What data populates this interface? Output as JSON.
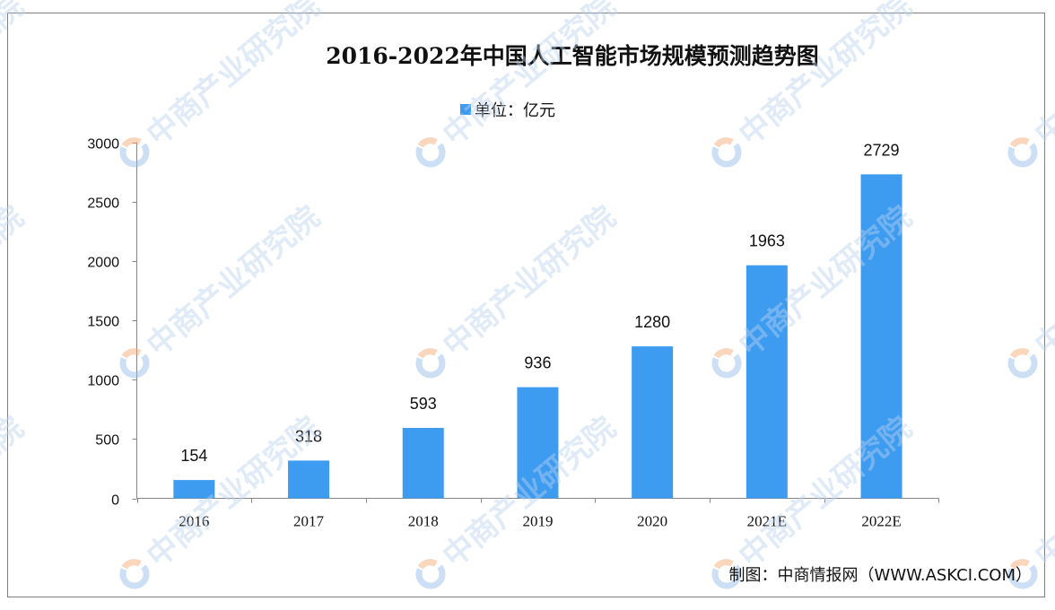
{
  "source": "制图：中商情报网（WWW.ASKCI.COM）",
  "watermark": "中商产业研究院",
  "chart_data": {
    "type": "bar",
    "title": "2016-2022年中国人工智能市场规模预测趋势图",
    "categories": [
      "2016",
      "2017",
      "2018",
      "2019",
      "2020",
      "2021E",
      "2022E"
    ],
    "series": [
      {
        "name": "单位：亿元",
        "values": [
          154,
          318,
          593,
          936,
          1280,
          1963,
          2729
        ],
        "color": "#3d9bf0"
      }
    ],
    "ylim": [
      0,
      3000
    ],
    "yticks": [
      0,
      500,
      1000,
      1500,
      2000,
      2500,
      3000
    ],
    "grid": false,
    "legend_position": "top-center",
    "data_labels": true
  }
}
